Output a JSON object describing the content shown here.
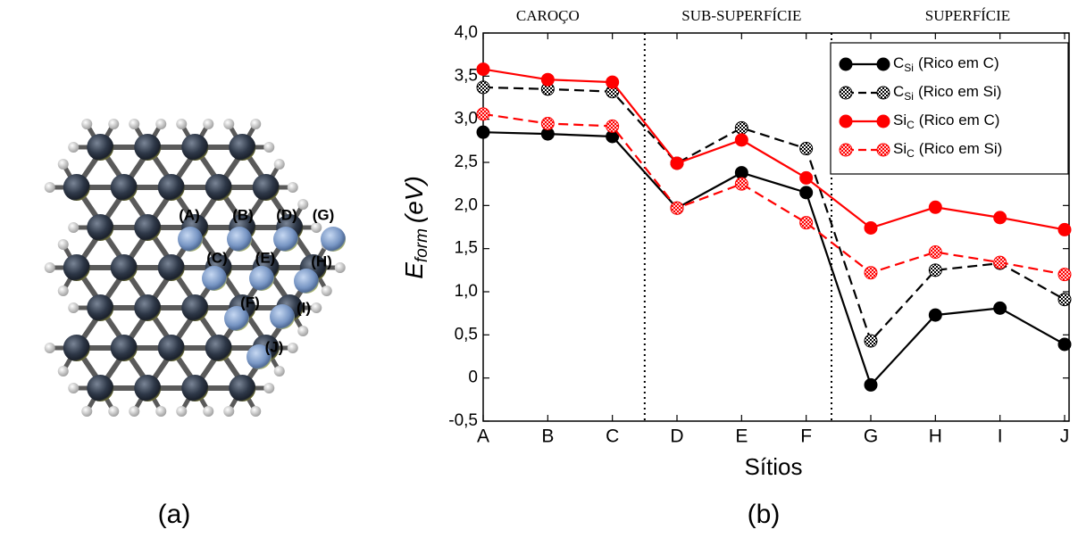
{
  "figure_a": {
    "caption": "(a)",
    "site_labels": [
      "(A)",
      "(B)",
      "(C)",
      "(D)",
      "(E)",
      "(F)",
      "(G)",
      "(H)",
      "(I)",
      "(J)"
    ]
  },
  "chart_data": {
    "type": "line",
    "caption": "(b)",
    "regions": [
      "CAROÇO",
      "SUB-SUPERFÍCIE",
      "SUPERFÍCIE"
    ],
    "xlabel": "Sítios",
    "ylabel": {
      "symbol": "E",
      "sub": "form",
      "unit": "(eV)"
    },
    "categories": [
      "A",
      "B",
      "C",
      "D",
      "E",
      "F",
      "G",
      "H",
      "I",
      "J"
    ],
    "ylim": [
      -0.5,
      4.0
    ],
    "yticks": [
      {
        "value": -0.5,
        "label": "-0,5"
      },
      0,
      {
        "value": 0.5,
        "label": "0,5"
      },
      {
        "value": 1.0,
        "label": "1,0"
      },
      {
        "value": 1.5,
        "label": "1,5"
      },
      {
        "value": 2.0,
        "label": "2,0"
      },
      {
        "value": 2.5,
        "label": "2,5"
      },
      {
        "value": 3.0,
        "label": "3,0"
      },
      {
        "value": 3.5,
        "label": "3,5"
      },
      {
        "value": 4.0,
        "label": "4,0"
      }
    ],
    "legend": "upper right",
    "series": [
      {
        "name": {
          "symbol": "C",
          "sub": "Si",
          "note": "(Rico em C)"
        },
        "color": "#000000",
        "dash": false,
        "marker": "filled",
        "values": [
          2.85,
          2.83,
          2.8,
          1.97,
          2.38,
          2.15,
          -0.08,
          0.73,
          0.81,
          0.39
        ]
      },
      {
        "name": {
          "symbol": "C",
          "sub": "Si",
          "note": "(Rico em Si)"
        },
        "color": "#000000",
        "dash": true,
        "marker": "hatched",
        "values": [
          3.37,
          3.35,
          3.32,
          2.49,
          2.9,
          2.66,
          0.43,
          1.25,
          1.33,
          0.91
        ]
      },
      {
        "name": {
          "symbol": "Si",
          "sub": "C",
          "note": "(Rico em C)"
        },
        "color": "#ff0000",
        "dash": false,
        "marker": "filled",
        "values": [
          3.58,
          3.46,
          3.43,
          2.49,
          2.76,
          2.32,
          1.74,
          1.98,
          1.86,
          1.72
        ]
      },
      {
        "name": {
          "symbol": "Si",
          "sub": "C",
          "note": "(Rico em Si)"
        },
        "color": "#ff0000",
        "dash": true,
        "marker": "hatched",
        "values": [
          3.06,
          2.95,
          2.92,
          1.97,
          2.25,
          1.8,
          1.22,
          1.46,
          1.34,
          1.2
        ]
      }
    ]
  }
}
